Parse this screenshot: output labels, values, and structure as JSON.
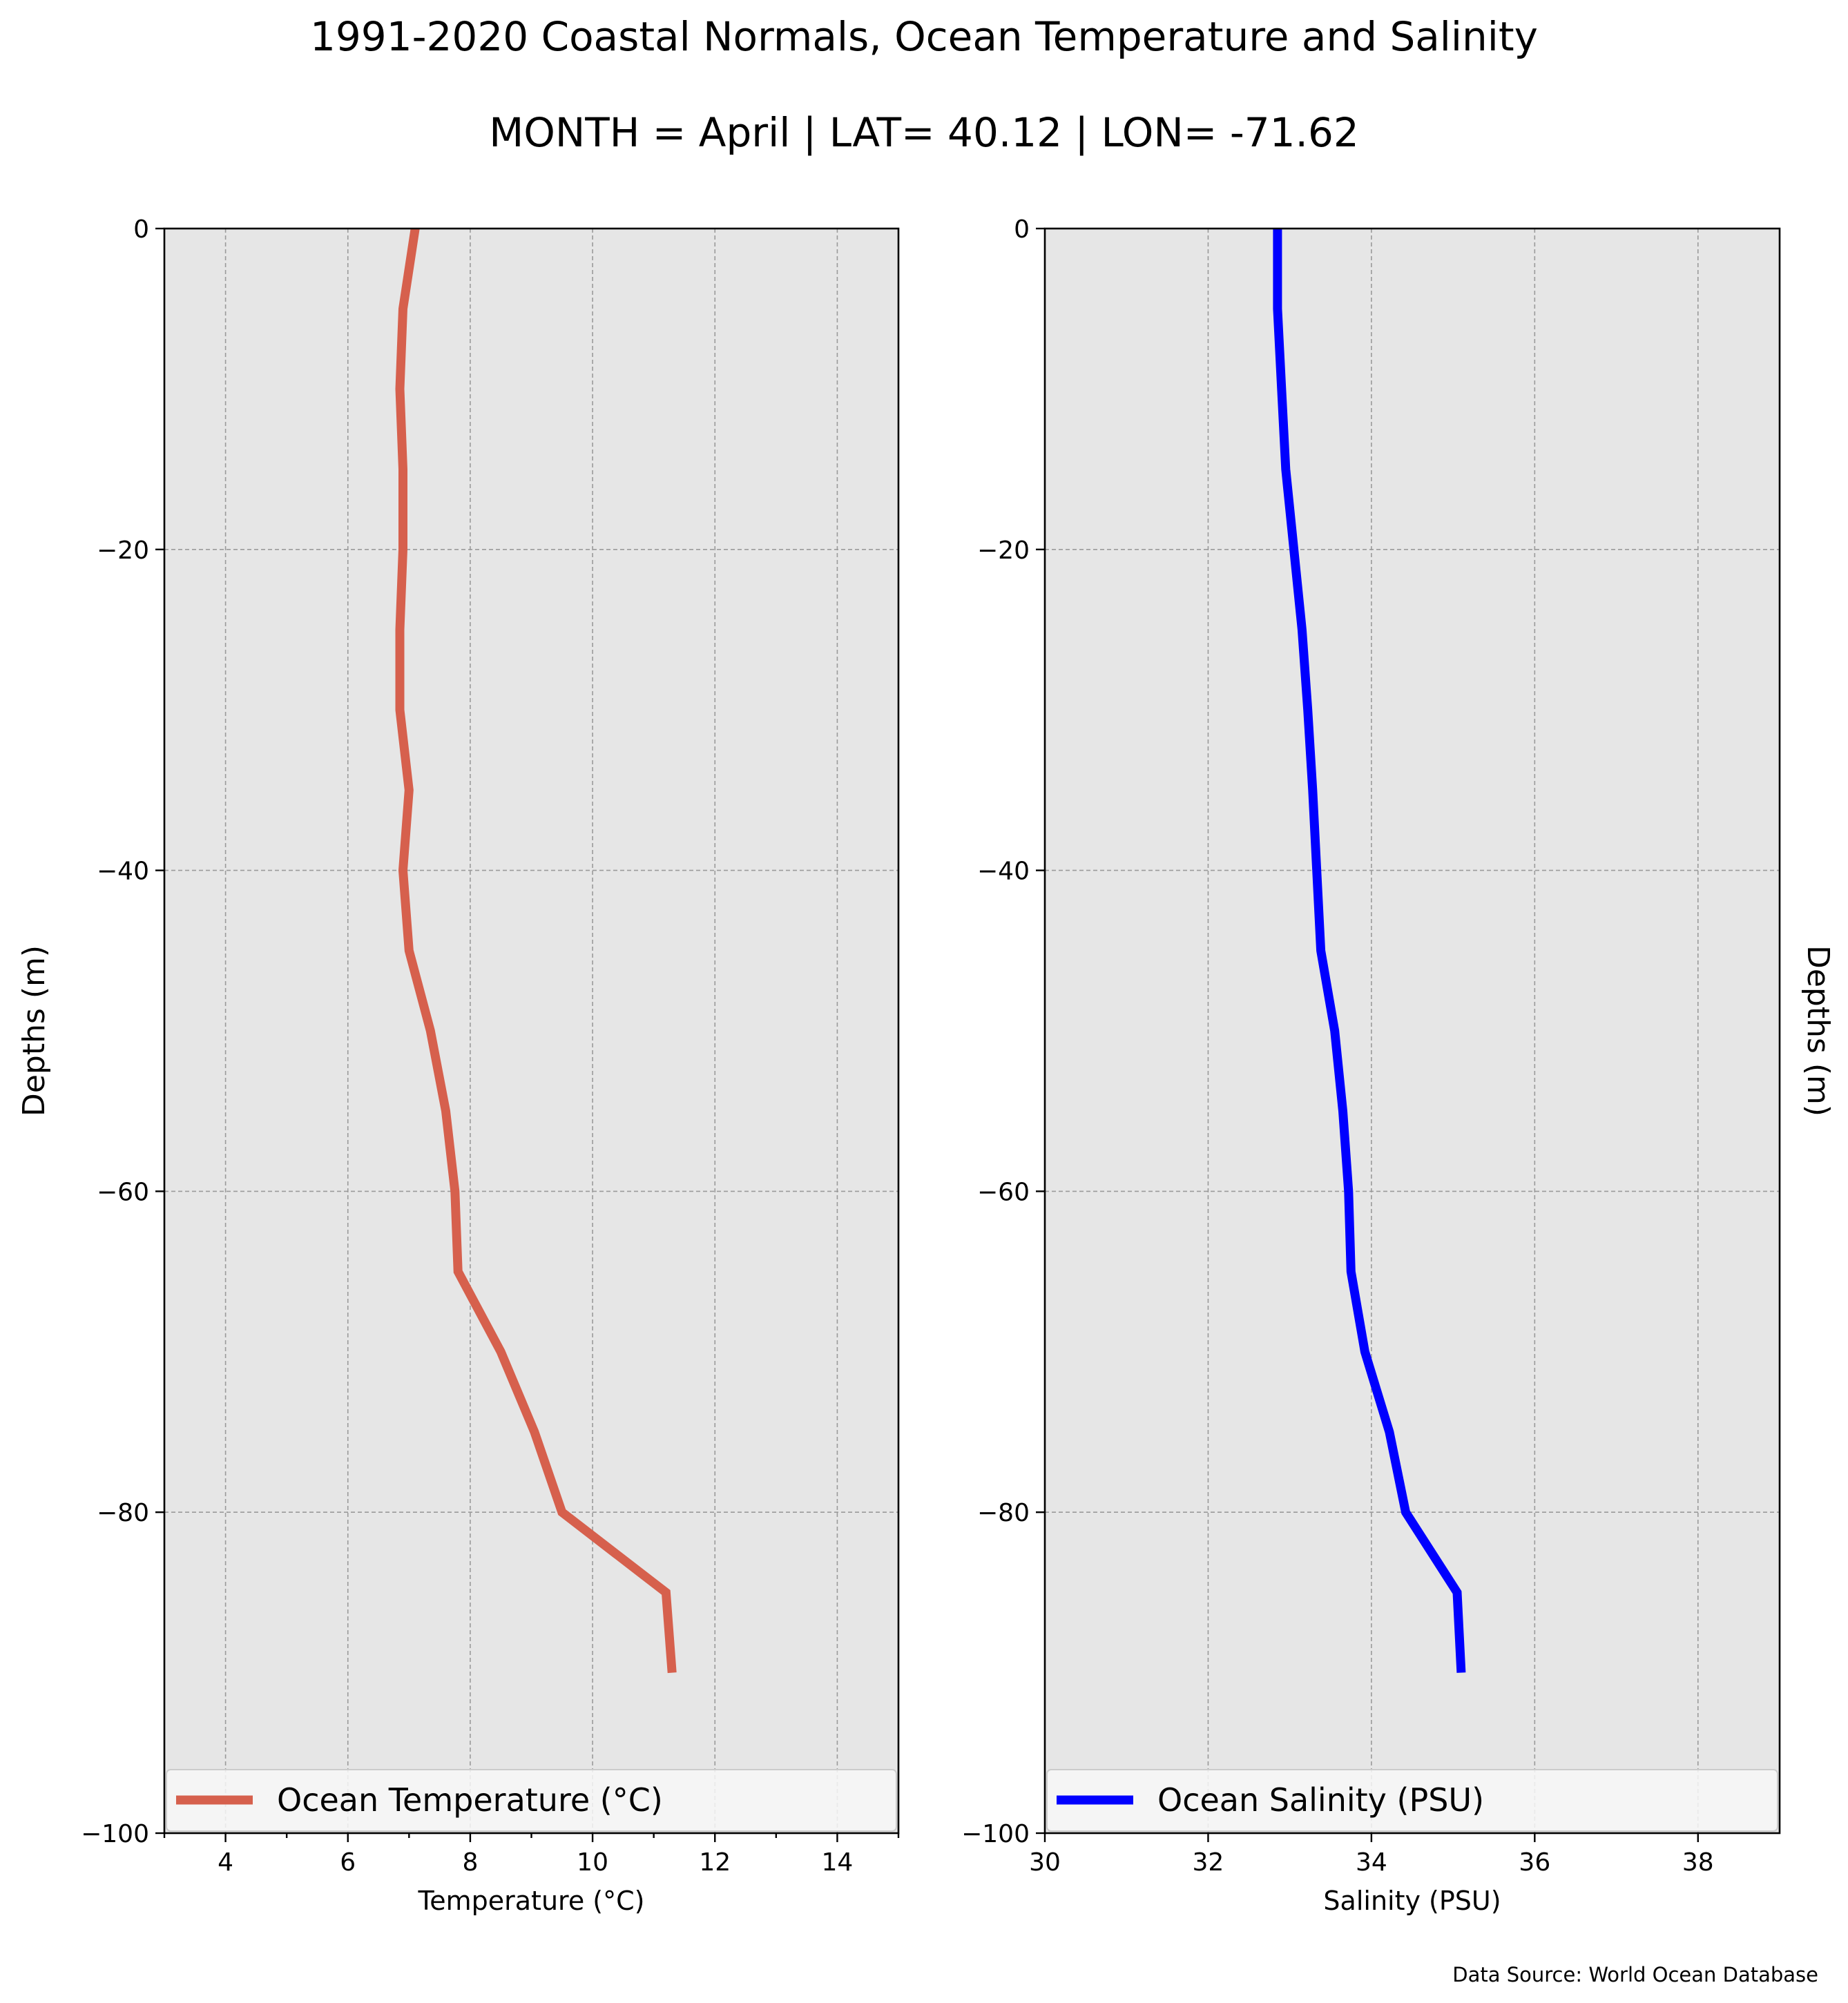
{
  "title": "1991-2020 Coastal Normals, Ocean Temperature and Salinity",
  "subtitle": "MONTH = April | LAT= 40.12 | LON= -71.62",
  "source": "Data Source: World Ocean Database",
  "chart_data": [
    {
      "type": "line",
      "title": "",
      "xlabel": "Temperature (°C)",
      "ylabel": "Depths (m)",
      "xlim": [
        3,
        15
      ],
      "ylim": [
        -100,
        0
      ],
      "xticks": [
        4,
        6,
        8,
        10,
        12,
        14
      ],
      "xtick_labels": [
        "4",
        "6",
        "8",
        "10",
        "12",
        "14"
      ],
      "minor_xticks": [
        3,
        5,
        7,
        9,
        11,
        13,
        15
      ],
      "yticks": [
        0,
        -20,
        -40,
        -60,
        -80,
        -100
      ],
      "ytick_labels": [
        "0",
        "−20",
        "−40",
        "−60",
        "−80",
        "−100"
      ],
      "grid": true,
      "legend_position": "bottom",
      "ylabel_side": "left",
      "series": [
        {
          "name": "Ocean Temperature (°C)",
          "color": "#d6604d",
          "x": [
            7.1,
            6.9,
            6.85,
            6.9,
            6.9,
            6.85,
            6.85,
            7.0,
            6.9,
            7.0,
            7.35,
            7.6,
            7.75,
            7.8,
            8.5,
            9.05,
            9.5,
            11.2,
            11.3
          ],
          "y": [
            0,
            -5,
            -10,
            -15,
            -20,
            -25,
            -30,
            -35,
            -40,
            -45,
            -50,
            -55,
            -60,
            -65,
            -70,
            -75,
            -80,
            -85,
            -90
          ]
        }
      ]
    },
    {
      "type": "line",
      "title": "",
      "xlabel": "Salinity (PSU)",
      "ylabel": "Depths (m)",
      "xlim": [
        30,
        39
      ],
      "ylim": [
        -100,
        0
      ],
      "xticks": [
        30,
        32,
        34,
        36,
        38
      ],
      "xtick_labels": [
        "30",
        "32",
        "34",
        "36",
        "38"
      ],
      "minor_xticks": [],
      "yticks": [
        0,
        -20,
        -40,
        -60,
        -80,
        -100
      ],
      "ytick_labels": [
        "0",
        "−20",
        "−40",
        "−60",
        "−80",
        "−100"
      ],
      "grid": true,
      "legend_position": "bottom",
      "ylabel_side": "right",
      "series": [
        {
          "name": "Ocean Salinity (PSU)",
          "color": "#0000ff",
          "x": [
            32.85,
            32.85,
            32.9,
            32.95,
            33.05,
            33.15,
            33.22,
            33.28,
            33.33,
            33.38,
            33.55,
            33.65,
            33.72,
            33.75,
            33.92,
            34.22,
            34.42,
            35.05,
            35.1
          ],
          "y": [
            0,
            -5,
            -10,
            -15,
            -20,
            -25,
            -30,
            -35,
            -40,
            -45,
            -50,
            -55,
            -60,
            -65,
            -70,
            -75,
            -80,
            -85,
            -90
          ]
        }
      ]
    }
  ]
}
